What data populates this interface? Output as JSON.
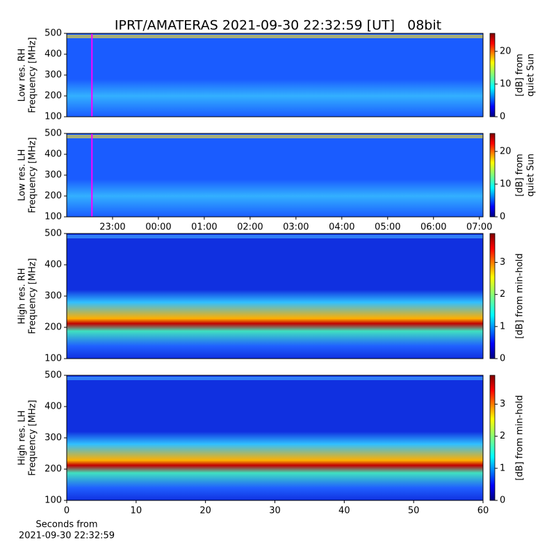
{
  "title": "IPRT/AMATERAS 2021-09-30 22:32:59 [UT]   08bit",
  "chart_data": [
    {
      "type": "heatmap",
      "ylabel": [
        "Low res. RH",
        "Frequency [MHz]"
      ],
      "ylim": [
        100,
        500
      ],
      "yticks": [
        100,
        200,
        300,
        400,
        500
      ],
      "xlim": [
        22.0,
        31.08
      ],
      "marker_x": 22.55,
      "marker_color": "#ff00ff",
      "colorbar": {
        "label": [
          "[dB] from",
          "quiet Sun"
        ],
        "lim": [
          0,
          25.5
        ],
        "ticks": [
          0,
          10,
          20
        ]
      }
    },
    {
      "type": "heatmap",
      "ylabel": [
        "Low res. LH",
        "Frequency [MHz]"
      ],
      "ylim": [
        100,
        500
      ],
      "yticks": [
        100,
        200,
        300,
        400,
        500
      ],
      "xlim": [
        22.0,
        31.08
      ],
      "marker_x": 22.55,
      "marker_color": "#ff00ff",
      "xticks": [
        {
          "value": 23,
          "label": "23:00"
        },
        {
          "value": 24,
          "label": "00:00"
        },
        {
          "value": 25,
          "label": "01:00"
        },
        {
          "value": 26,
          "label": "02:00"
        },
        {
          "value": 27,
          "label": "03:00"
        },
        {
          "value": 28,
          "label": "04:00"
        },
        {
          "value": 29,
          "label": "05:00"
        },
        {
          "value": 30,
          "label": "06:00"
        },
        {
          "value": 31,
          "label": "07:00"
        }
      ],
      "colorbar": {
        "label": [
          "[dB] from",
          "quiet Sun"
        ],
        "lim": [
          0,
          25.5
        ],
        "ticks": [
          0,
          10,
          20
        ]
      }
    },
    {
      "type": "heatmap",
      "ylabel": [
        "High res. RH",
        "Frequency [MHz]"
      ],
      "ylim": [
        100,
        500
      ],
      "yticks": [
        100,
        200,
        300,
        400,
        500
      ],
      "xlim": [
        0,
        60
      ],
      "colorbar": {
        "label": [
          "[dB] from min-hold"
        ],
        "lim": [
          0,
          3.9
        ],
        "ticks": [
          0,
          1,
          2,
          3
        ]
      }
    },
    {
      "type": "heatmap",
      "ylabel": [
        "High res. LH",
        "Frequency [MHz]"
      ],
      "ylim": [
        100,
        500
      ],
      "yticks": [
        100,
        200,
        300,
        400,
        500
      ],
      "xlim": [
        0,
        60
      ],
      "xticks": [
        0,
        10,
        20,
        30,
        40,
        50,
        60
      ],
      "xlabel": [
        "Seconds from",
        "2021-09-30 22:32:59"
      ],
      "colorbar": {
        "label": [
          "[dB] from min-hold"
        ],
        "lim": [
          0,
          3.9
        ],
        "ticks": [
          0,
          1,
          2,
          3
        ]
      }
    }
  ]
}
